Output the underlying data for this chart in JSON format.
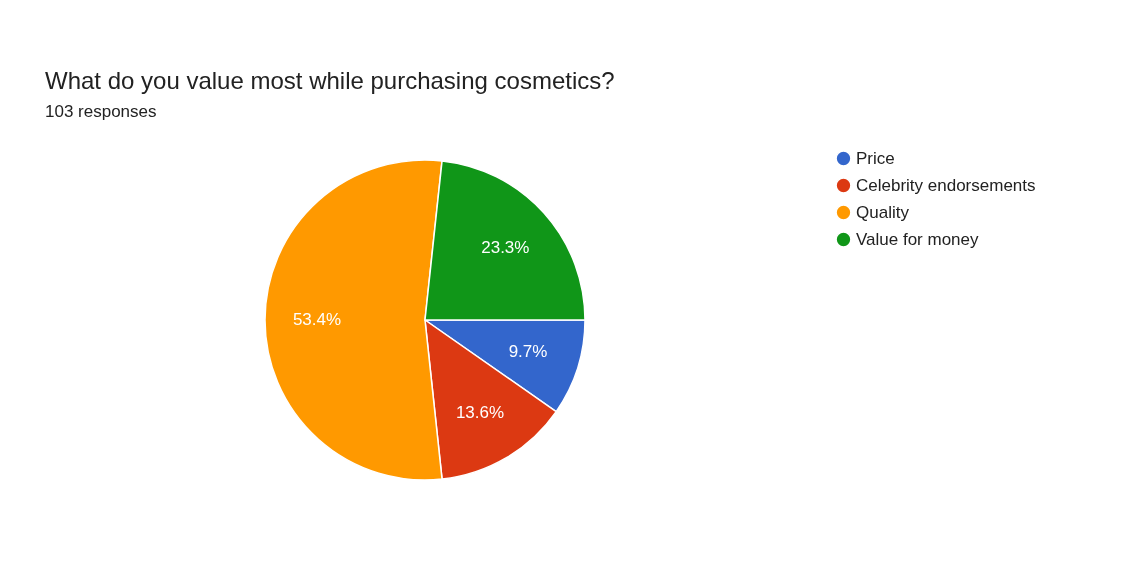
{
  "chart_data": {
    "type": "pie",
    "title": "What do you value most while purchasing cosmetics?",
    "subtitle": "103 responses",
    "categories": [
      "Price",
      "Celebrity endorsements",
      "Quality",
      "Value for money"
    ],
    "values": [
      9.7,
      13.6,
      53.4,
      23.3
    ],
    "colors": [
      "#3366cc",
      "#dc3912",
      "#ff9900",
      "#109618"
    ],
    "value_labels": [
      "9.7%",
      "13.6%",
      "53.4%",
      "23.3%"
    ],
    "legend": "right"
  }
}
